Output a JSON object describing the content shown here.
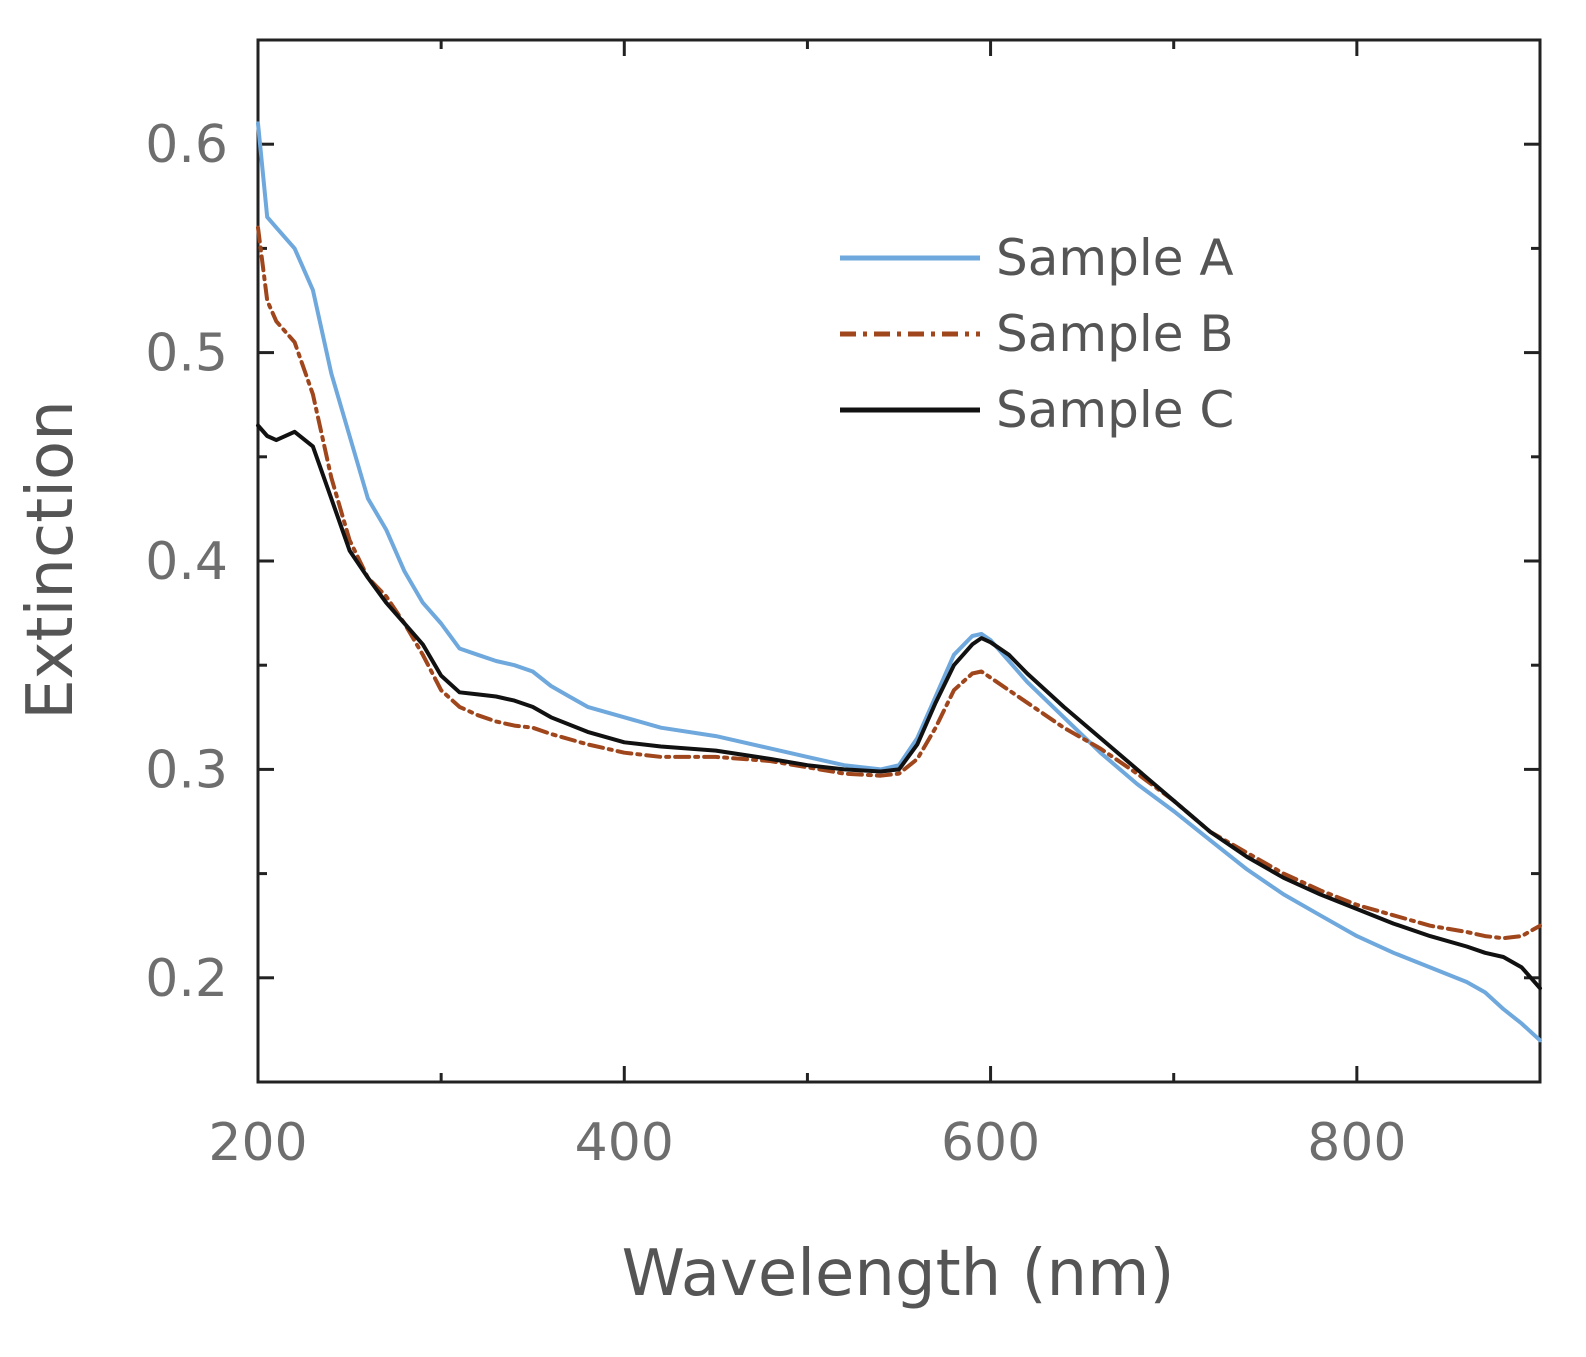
{
  "chart_data": {
    "type": "line",
    "title": "",
    "xlabel": "Wavelength (nm)",
    "ylabel": "Extinction",
    "xlim": [
      200,
      900
    ],
    "ylim": [
      0.15,
      0.65
    ],
    "xticks": [
      200,
      400,
      600,
      800
    ],
    "yticks": [
      0.2,
      0.3,
      0.4,
      0.5,
      0.6
    ],
    "xminor": [
      300,
      500,
      700
    ],
    "yminor": [
      0.25,
      0.35,
      0.45,
      0.55
    ],
    "legend_position": "top-right",
    "series": [
      {
        "name": "Sample A",
        "color": "#6fa8dc",
        "style": "solid",
        "x": [
          200,
          205,
          210,
          220,
          230,
          240,
          250,
          260,
          270,
          280,
          290,
          300,
          310,
          320,
          330,
          340,
          350,
          360,
          370,
          380,
          400,
          420,
          450,
          480,
          500,
          520,
          540,
          550,
          560,
          570,
          580,
          590,
          595,
          600,
          610,
          620,
          640,
          660,
          680,
          700,
          720,
          740,
          760,
          780,
          800,
          820,
          840,
          860,
          870,
          880,
          890,
          900
        ],
        "y": [
          0.61,
          0.565,
          0.56,
          0.55,
          0.53,
          0.49,
          0.46,
          0.43,
          0.415,
          0.395,
          0.38,
          0.37,
          0.358,
          0.355,
          0.352,
          0.35,
          0.347,
          0.34,
          0.335,
          0.33,
          0.325,
          0.32,
          0.316,
          0.31,
          0.306,
          0.302,
          0.3,
          0.302,
          0.315,
          0.335,
          0.355,
          0.364,
          0.365,
          0.362,
          0.352,
          0.342,
          0.325,
          0.308,
          0.293,
          0.28,
          0.266,
          0.252,
          0.24,
          0.23,
          0.22,
          0.212,
          0.205,
          0.198,
          0.193,
          0.185,
          0.178,
          0.17
        ]
      },
      {
        "name": "Sample B",
        "color": "#a0461c",
        "style": "dashdot",
        "x": [
          200,
          205,
          210,
          220,
          230,
          240,
          250,
          260,
          270,
          280,
          290,
          300,
          310,
          320,
          330,
          340,
          350,
          360,
          380,
          400,
          420,
          450,
          480,
          500,
          520,
          540,
          550,
          560,
          570,
          580,
          590,
          595,
          600,
          610,
          620,
          640,
          660,
          680,
          700,
          720,
          740,
          760,
          780,
          800,
          820,
          840,
          860,
          870,
          880,
          890,
          900
        ],
        "y": [
          0.56,
          0.525,
          0.515,
          0.505,
          0.48,
          0.44,
          0.41,
          0.392,
          0.383,
          0.37,
          0.355,
          0.338,
          0.33,
          0.326,
          0.323,
          0.321,
          0.32,
          0.317,
          0.312,
          0.308,
          0.306,
          0.306,
          0.304,
          0.301,
          0.298,
          0.297,
          0.298,
          0.305,
          0.32,
          0.338,
          0.346,
          0.347,
          0.344,
          0.338,
          0.332,
          0.32,
          0.31,
          0.298,
          0.285,
          0.27,
          0.26,
          0.25,
          0.242,
          0.235,
          0.23,
          0.225,
          0.222,
          0.22,
          0.219,
          0.22,
          0.225
        ]
      },
      {
        "name": "Sample C",
        "color": "#111111",
        "style": "solid",
        "x": [
          200,
          205,
          210,
          220,
          230,
          240,
          250,
          260,
          270,
          280,
          290,
          300,
          310,
          320,
          330,
          340,
          350,
          360,
          380,
          400,
          420,
          450,
          480,
          500,
          520,
          540,
          550,
          560,
          570,
          580,
          590,
          595,
          600,
          610,
          620,
          640,
          660,
          680,
          700,
          720,
          740,
          760,
          780,
          800,
          820,
          840,
          860,
          870,
          880,
          890,
          900
        ],
        "y": [
          0.465,
          0.46,
          0.458,
          0.462,
          0.455,
          0.43,
          0.405,
          0.392,
          0.38,
          0.37,
          0.36,
          0.345,
          0.337,
          0.336,
          0.335,
          0.333,
          0.33,
          0.325,
          0.318,
          0.313,
          0.311,
          0.309,
          0.305,
          0.302,
          0.3,
          0.299,
          0.3,
          0.312,
          0.332,
          0.35,
          0.36,
          0.363,
          0.361,
          0.355,
          0.346,
          0.33,
          0.315,
          0.3,
          0.285,
          0.27,
          0.258,
          0.248,
          0.24,
          0.233,
          0.226,
          0.22,
          0.215,
          0.212,
          0.21,
          0.205,
          0.195
        ]
      }
    ]
  }
}
